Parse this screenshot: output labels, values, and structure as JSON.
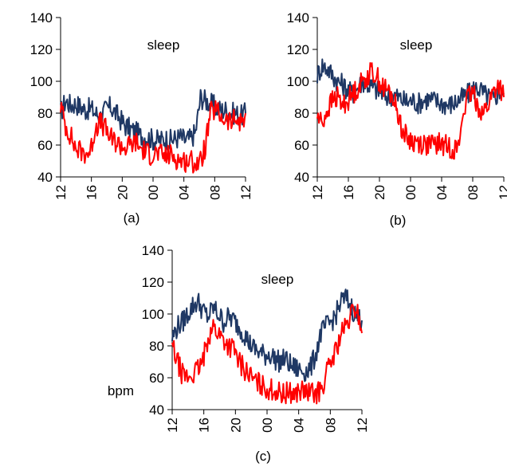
{
  "chart_data": [
    {
      "type": "line",
      "panel_label": "(a)",
      "annotation": "sleep",
      "ylabel": "",
      "ylim": [
        40,
        140
      ],
      "yticks": [
        "40",
        "60",
        "80",
        "100",
        "120",
        "140"
      ],
      "xticks": [
        "12",
        "16",
        "20",
        "00",
        "04",
        "08",
        "12"
      ],
      "series": [
        {
          "color": "#1f3864",
          "values": [
            80,
            88,
            85,
            86,
            84,
            82,
            83,
            80,
            78,
            82,
            84,
            80,
            76,
            72,
            70,
            68,
            66,
            65,
            64,
            63,
            63,
            64,
            63,
            64,
            65,
            63,
            64,
            68,
            90,
            88,
            86,
            84,
            82,
            82,
            80,
            80,
            78,
            80
          ]
        },
        {
          "color": "#ff0000",
          "values": [
            85,
            72,
            66,
            58,
            56,
            55,
            56,
            72,
            74,
            70,
            64,
            62,
            60,
            58,
            60,
            62,
            58,
            56,
            54,
            55,
            54,
            53,
            54,
            52,
            50,
            50,
            50,
            49,
            49,
            60,
            80,
            82,
            78,
            76,
            74,
            76,
            74,
            80
          ]
        }
      ]
    },
    {
      "type": "line",
      "panel_label": "(b)",
      "annotation": "sleep",
      "ylabel": "",
      "ylim": [
        40,
        140
      ],
      "yticks": [
        "40",
        "60",
        "80",
        "100",
        "120",
        "140"
      ],
      "xticks": [
        "12",
        "16",
        "20",
        "00",
        "04",
        "08",
        "12"
      ],
      "series": [
        {
          "color": "#1f3864",
          "values": [
            104,
            110,
            108,
            104,
            100,
            98,
            95,
            92,
            96,
            100,
            98,
            96,
            94,
            92,
            90,
            92,
            90,
            88,
            87,
            88,
            86,
            88,
            89,
            88,
            87,
            86,
            85,
            86,
            88,
            90,
            92,
            95,
            96,
            92,
            90,
            88,
            94,
            92
          ]
        },
        {
          "color": "#ff0000",
          "values": [
            78,
            74,
            82,
            88,
            90,
            85,
            88,
            92,
            96,
            100,
            104,
            106,
            102,
            96,
            94,
            90,
            80,
            68,
            64,
            62,
            62,
            61,
            60,
            60,
            61,
            60,
            59,
            58,
            58,
            82,
            90,
            92,
            84,
            80,
            86,
            94,
            98,
            90
          ]
        }
      ]
    },
    {
      "type": "line",
      "panel_label": "(c)",
      "annotation": "sleep",
      "ylabel": "bpm",
      "ylim": [
        40,
        140
      ],
      "yticks": [
        "40",
        "60",
        "80",
        "100",
        "120",
        "140"
      ],
      "xticks": [
        "12",
        "16",
        "20",
        "00",
        "04",
        "08",
        "12"
      ],
      "series": [
        {
          "color": "#1f3864",
          "values": [
            85,
            92,
            95,
            100,
            105,
            108,
            102,
            98,
            104,
            100,
            95,
            98,
            96,
            92,
            88,
            82,
            78,
            76,
            74,
            75,
            72,
            70,
            72,
            68,
            66,
            65,
            64,
            66,
            75,
            88,
            92,
            95,
            100,
            108,
            110,
            104,
            98,
            96
          ]
        },
        {
          "color": "#ff0000",
          "values": [
            80,
            70,
            62,
            60,
            62,
            65,
            70,
            86,
            92,
            88,
            84,
            80,
            78,
            70,
            66,
            62,
            58,
            56,
            54,
            53,
            52,
            50,
            50,
            51,
            50,
            52,
            51,
            50,
            50,
            52,
            62,
            70,
            78,
            88,
            92,
            100,
            104,
            88
          ]
        }
      ]
    }
  ]
}
